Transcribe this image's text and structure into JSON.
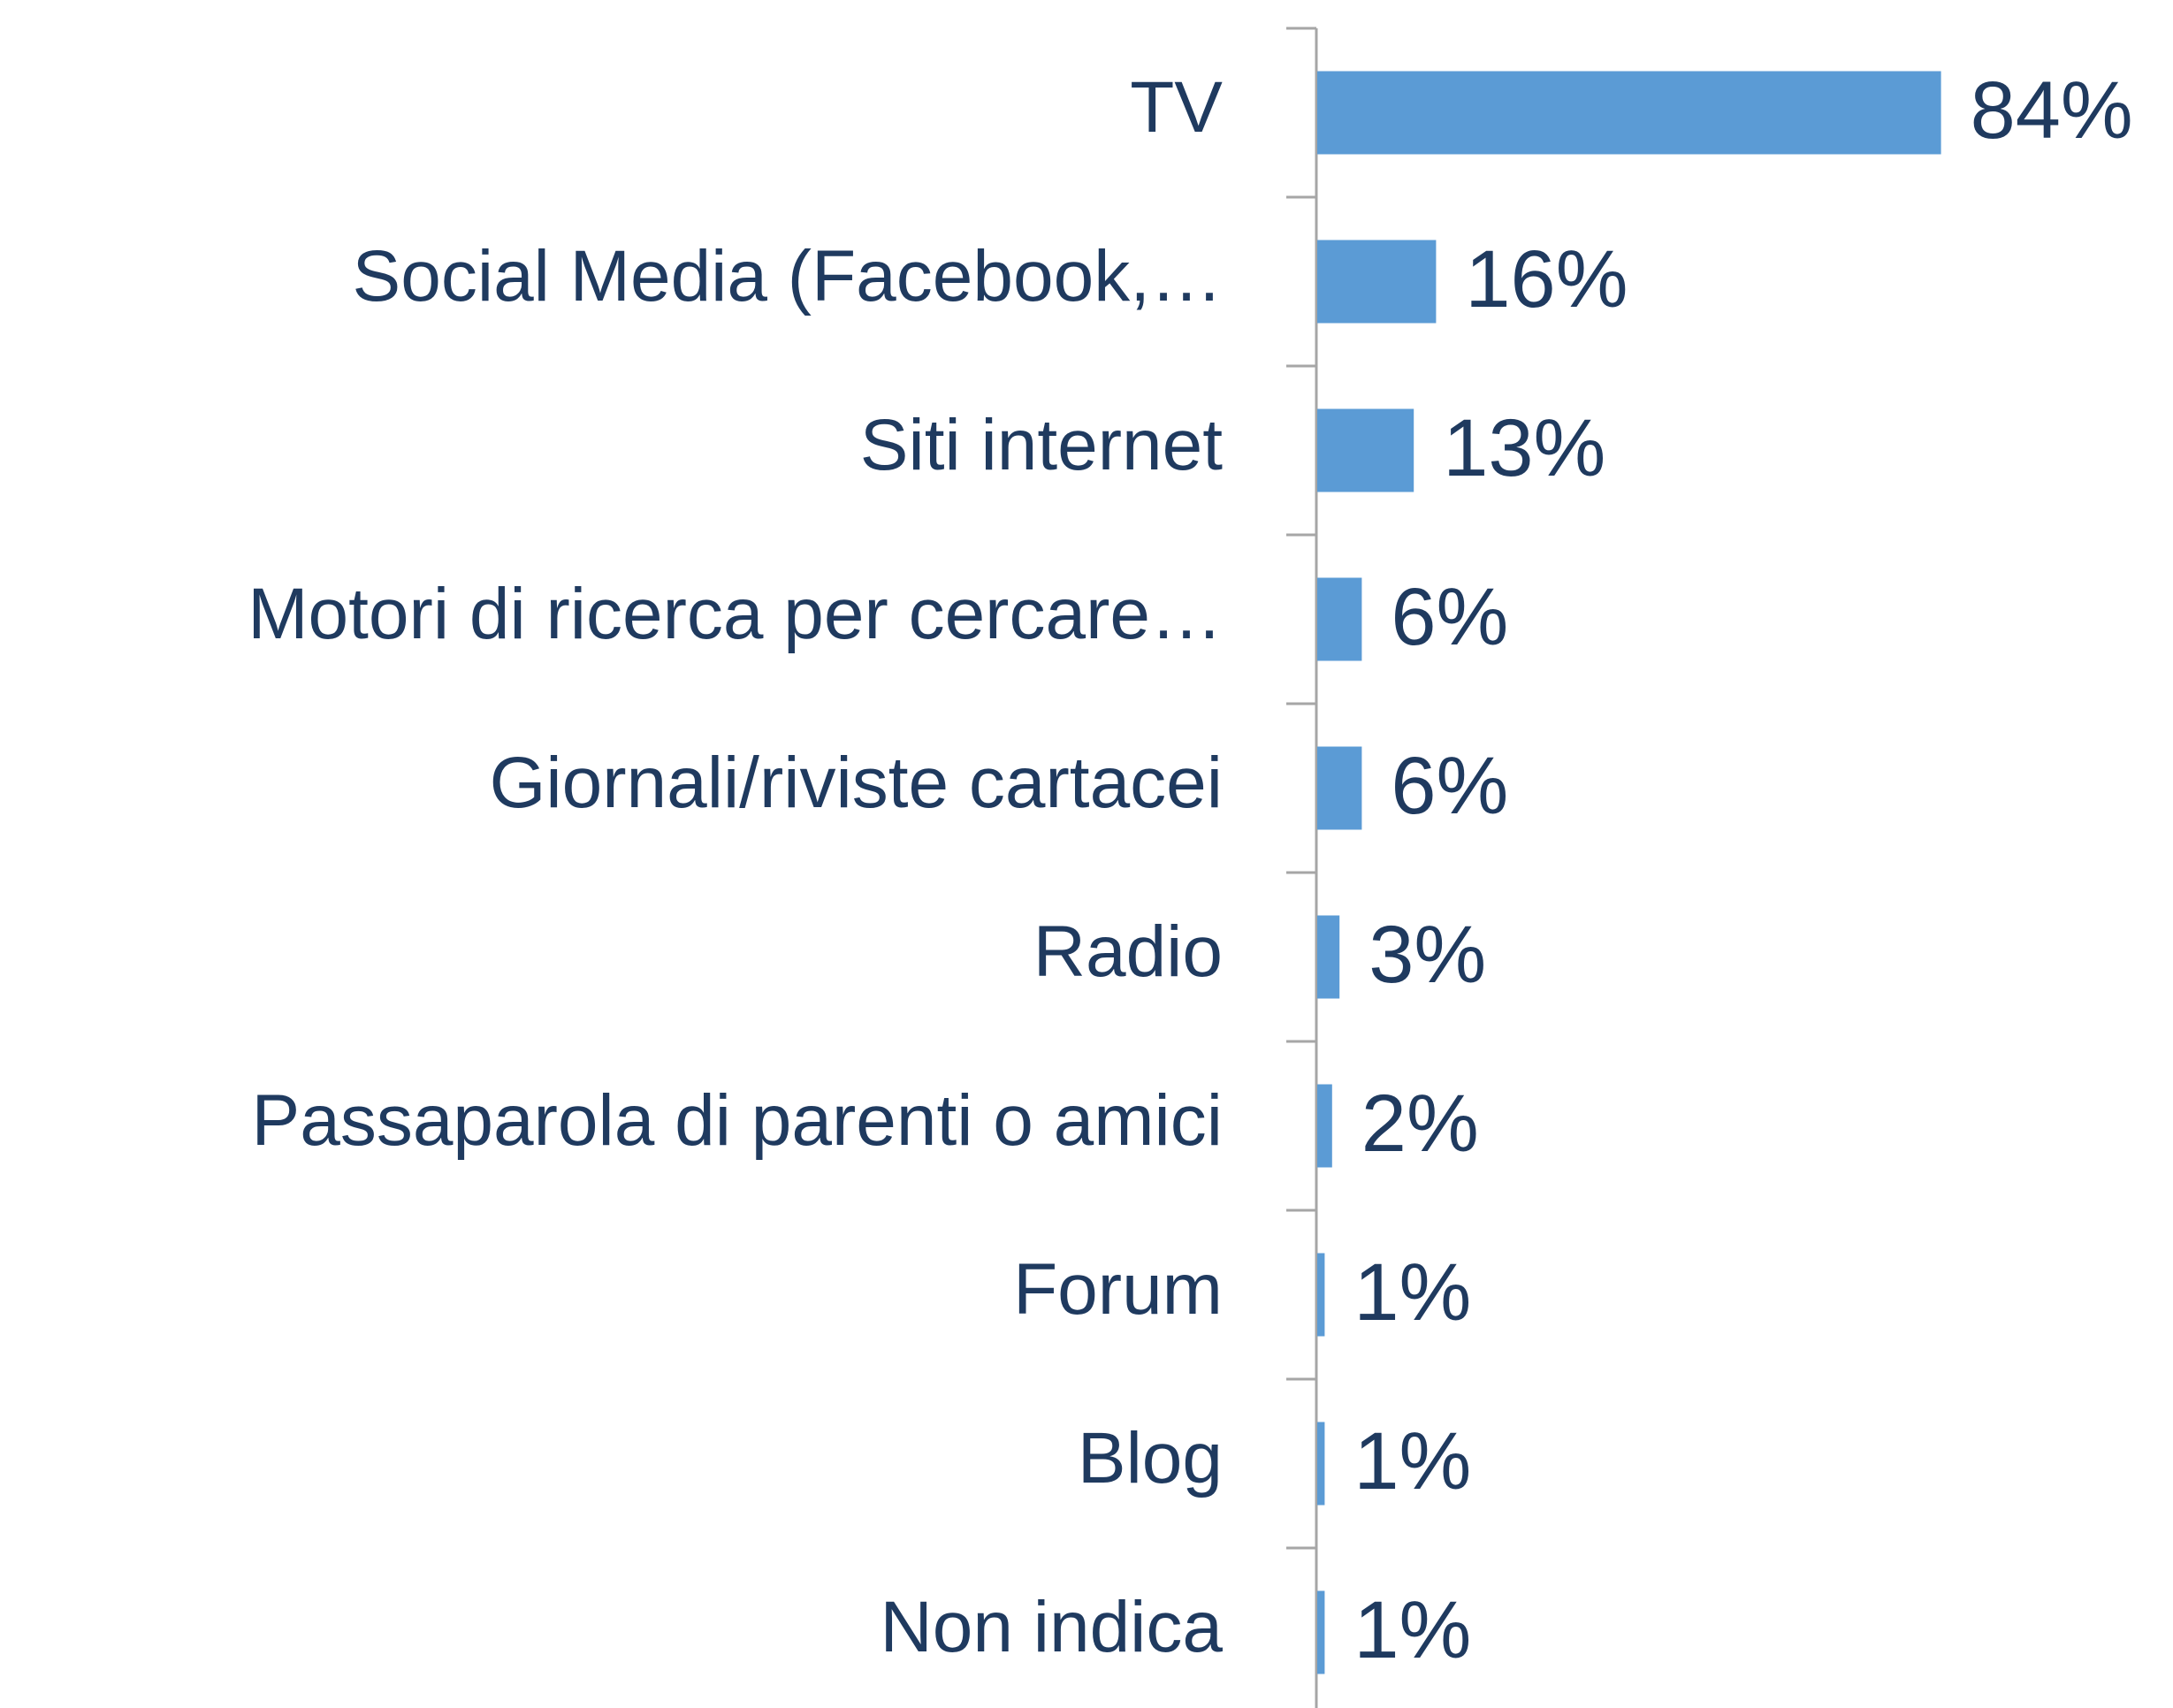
{
  "chart_data": {
    "type": "bar",
    "orientation": "horizontal",
    "categories": [
      "TV",
      "Social Media (Facebook,…",
      "Siti internet",
      "Motori di ricerca per cercare…",
      "Giornali/riviste cartacei",
      "Radio",
      "Passaparola di parenti o amici",
      "Forum",
      "Blog",
      "Non indica"
    ],
    "values": [
      84,
      16,
      13,
      6,
      6,
      3,
      2,
      1,
      1,
      1
    ],
    "value_labels": [
      "84%",
      "16%",
      "13%",
      "6%",
      "6%",
      "3%",
      "2%",
      "1%",
      "1%",
      "1%"
    ],
    "color": "#5b9bd5"
  }
}
